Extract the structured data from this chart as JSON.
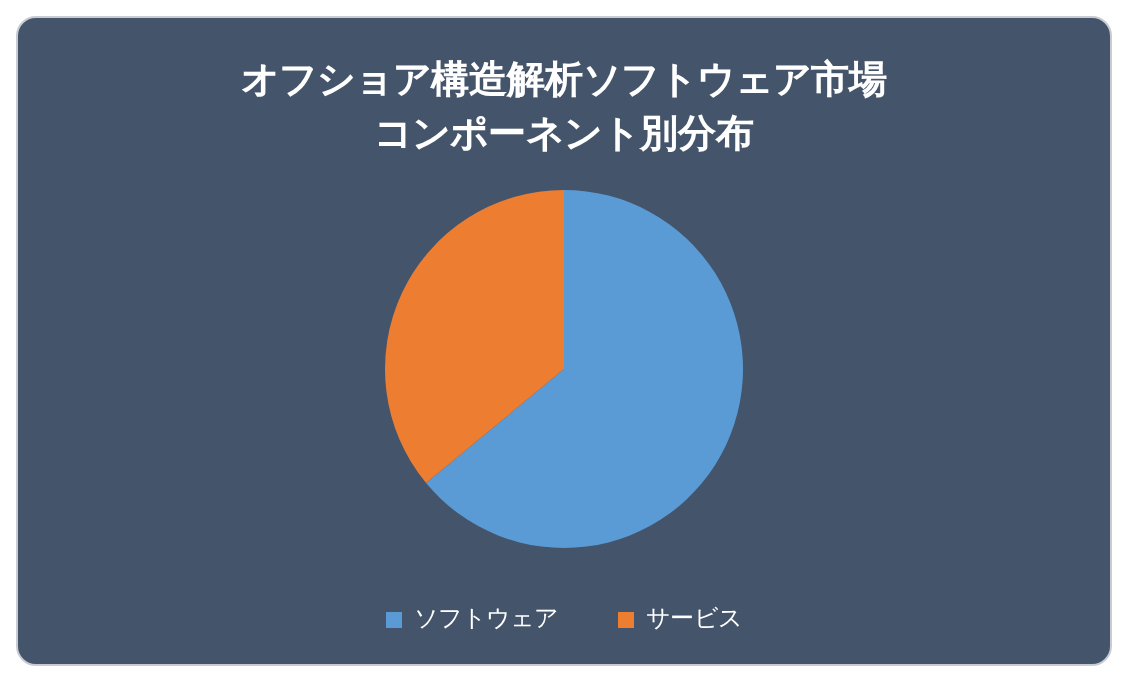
{
  "chart_data": {
    "type": "pie",
    "title": "オフショア構造解析ソフトウェア市場コンポーネント別分布",
    "categories": [
      "ソフトウェア",
      "サービス"
    ],
    "values": [
      64,
      36
    ],
    "colors": [
      "#5b9bd5",
      "#ed7d31"
    ],
    "legend": "bottom"
  }
}
